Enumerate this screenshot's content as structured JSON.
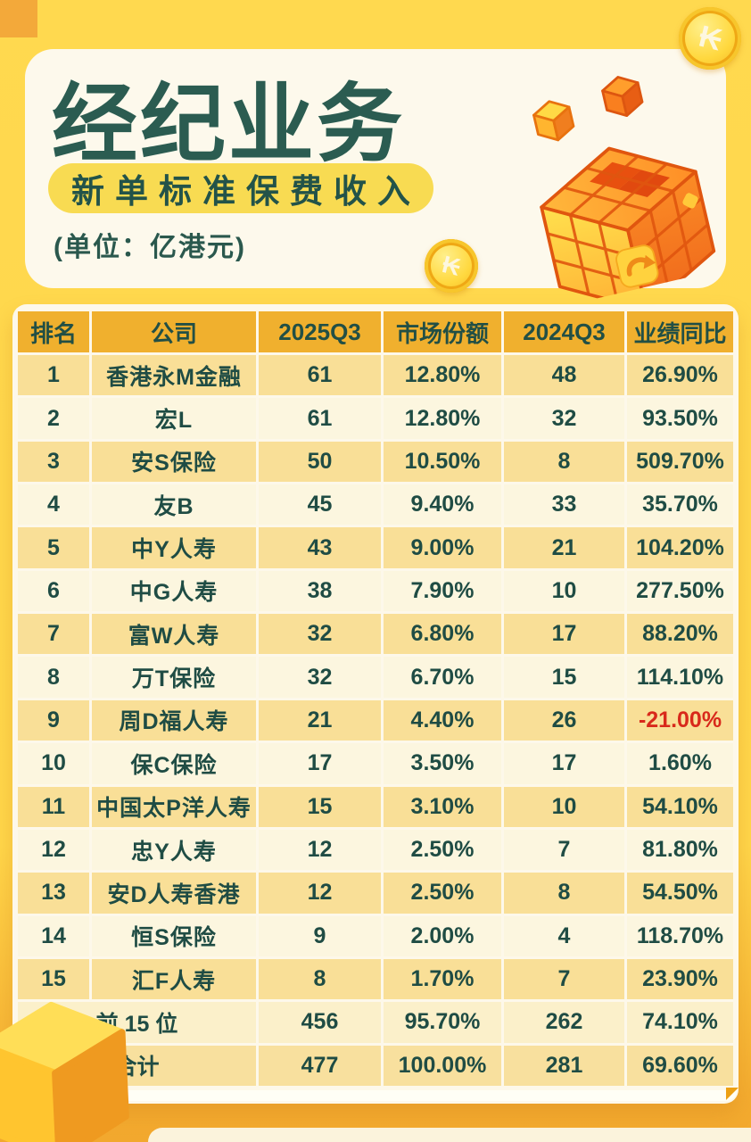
{
  "header": {
    "title": "经纪业务",
    "subtitle": "新单标准保费收入",
    "unit_note": "(单位：亿港元)",
    "coin_symbol": "₭"
  },
  "colors": {
    "page_yellow": "#FFD64A",
    "card_cream": "#FDF8EA",
    "header_gold": "#F0B02E",
    "row_odd": "#F9DF97",
    "row_even": "#FCF6DF",
    "summary_top15": "#FBF0CA",
    "summary_total": "#F8E09E",
    "text_teal": "#1F4C44",
    "title_teal": "#2B5C51",
    "subtitle_pill": "#F8DB52",
    "negative_red": "#D8291B"
  },
  "chart_data": {
    "type": "table",
    "title": "经纪业务",
    "subtitle": "新单标准保费收入",
    "unit": "亿港元",
    "columns": [
      "排名",
      "公司",
      "2025Q3",
      "市场份额",
      "2024Q3",
      "业绩同比"
    ],
    "rows": [
      [
        "1",
        "香港永M金融",
        "61",
        "12.80%",
        "48",
        "26.90%"
      ],
      [
        "2",
        "宏L",
        "61",
        "12.80%",
        "32",
        "93.50%"
      ],
      [
        "3",
        "安S保险",
        "50",
        "10.50%",
        "8",
        "509.70%"
      ],
      [
        "4",
        "友B",
        "45",
        "9.40%",
        "33",
        "35.70%"
      ],
      [
        "5",
        "中Y人寿",
        "43",
        "9.00%",
        "21",
        "104.20%"
      ],
      [
        "6",
        "中G人寿",
        "38",
        "7.90%",
        "10",
        "277.50%"
      ],
      [
        "7",
        "富W人寿",
        "32",
        "6.80%",
        "17",
        "88.20%"
      ],
      [
        "8",
        "万T保险",
        "32",
        "6.70%",
        "15",
        "114.10%"
      ],
      [
        "9",
        "周D福人寿",
        "21",
        "4.40%",
        "26",
        "-21.00%"
      ],
      [
        "10",
        "保C保险",
        "17",
        "3.50%",
        "17",
        "1.60%"
      ],
      [
        "11",
        "中国太P洋人寿",
        "15",
        "3.10%",
        "10",
        "54.10%"
      ],
      [
        "12",
        "忠Y人寿",
        "12",
        "2.50%",
        "7",
        "81.80%"
      ],
      [
        "13",
        "安D人寿香港",
        "12",
        "2.50%",
        "8",
        "54.50%"
      ],
      [
        "14",
        "恒S保险",
        "9",
        "2.00%",
        "4",
        "118.70%"
      ],
      [
        "15",
        "汇F人寿",
        "8",
        "1.70%",
        "7",
        "23.90%"
      ]
    ],
    "summary_rows": [
      [
        "前 15 位",
        "456",
        "95.70%",
        "262",
        "74.10%"
      ],
      [
        "合计",
        "477",
        "100.00%",
        "281",
        "69.60%"
      ]
    ]
  }
}
